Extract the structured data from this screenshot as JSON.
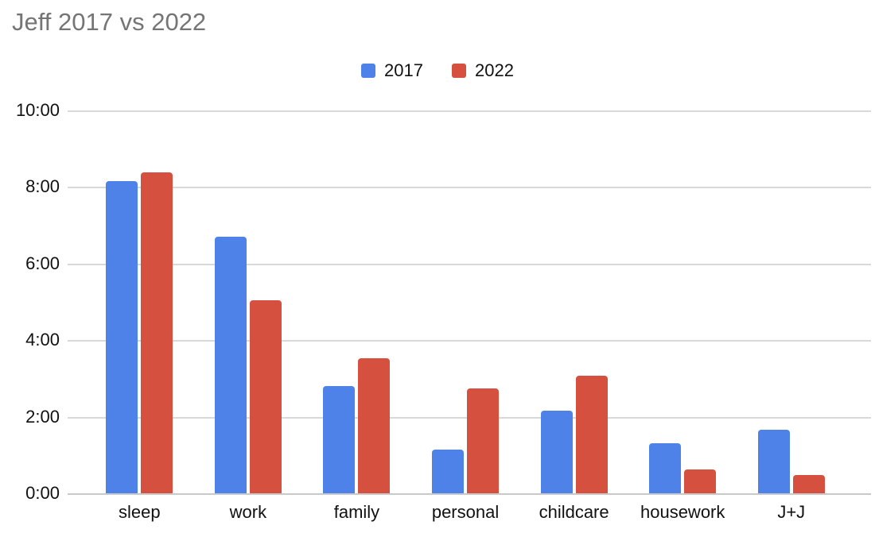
{
  "title": "Jeff 2017 vs 2022",
  "colors": {
    "series_2017": "#4e82e8",
    "series_2022": "#d5503f",
    "gridline": "#d9d9d9",
    "baseline": "#c9c9c9",
    "title_text": "#757575",
    "axis_text": "#111111",
    "background": "#ffffff"
  },
  "legend": {
    "items": [
      {
        "label": "2017",
        "color": "#4e82e8"
      },
      {
        "label": "2022",
        "color": "#d5503f"
      }
    ]
  },
  "chart_data": {
    "type": "bar",
    "title": "Jeff 2017 vs 2022",
    "categories": [
      "sleep",
      "work",
      "family",
      "personal",
      "childcare",
      "housework",
      "J+J"
    ],
    "series": [
      {
        "name": "2017",
        "color": "#4e82e8",
        "values": [
          8.15,
          6.7,
          2.8,
          1.15,
          2.15,
          1.3,
          1.65
        ]
      },
      {
        "name": "2022",
        "color": "#d5503f",
        "values": [
          8.38,
          5.05,
          3.52,
          2.73,
          3.08,
          0.63,
          0.48
        ]
      }
    ],
    "value_unit": "hours",
    "y_ticks": [
      "10:00",
      "8:00",
      "6:00",
      "4:00",
      "2:00",
      "0:00"
    ],
    "ylim": [
      0,
      10
    ],
    "xlabel": "",
    "ylabel": "",
    "grid": true,
    "legend_position": "top"
  }
}
